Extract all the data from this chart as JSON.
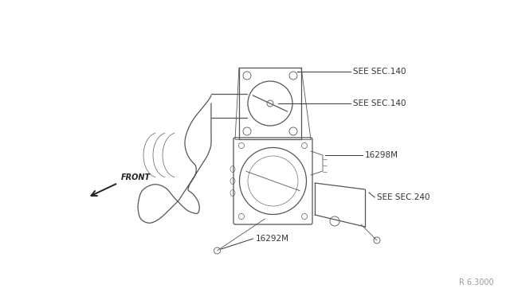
{
  "bg_color": "#ffffff",
  "line_color": "#555555",
  "text_color": "#333333",
  "fig_width": 6.4,
  "fig_height": 3.72,
  "watermark": "R 6.3000",
  "labels": {
    "see_sec_140_top": "SEE SEC.140",
    "see_sec_140_bot": "SEE SEC.140",
    "part_16298M": "16298M",
    "see_sec_240": "SEE SEC.240",
    "part_16292M": "16292M",
    "front": "FRONT"
  }
}
